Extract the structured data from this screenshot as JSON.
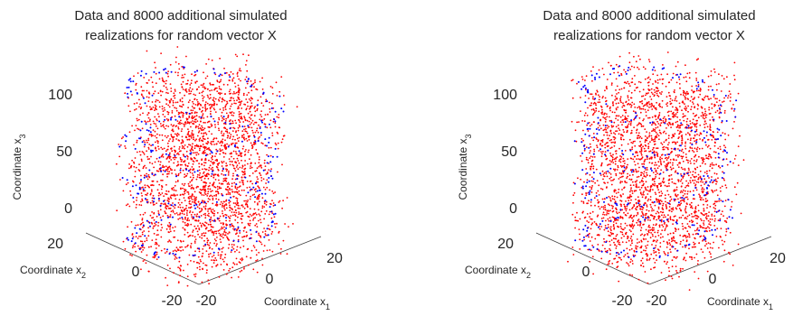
{
  "chart_data": [
    {
      "type": "scatter3d",
      "title": [
        "Data and 8000 additional simulated",
        "realizations for random vector X"
      ],
      "xlabel": "Coordinate x",
      "xlabel_sub": "1",
      "ylabel": "Coordinate x",
      "ylabel_sub": "2",
      "zlabel": "Coordinate x",
      "zlabel_sub": "3",
      "xlim": [
        -20,
        20
      ],
      "ylim": [
        -20,
        20
      ],
      "zlim": [
        0,
        100
      ],
      "xticks": [
        "-20",
        "0",
        "20"
      ],
      "yticks": [
        "-20",
        "0",
        "20"
      ],
      "zticks": [
        "0",
        "50",
        "100"
      ],
      "grid": false,
      "series": [
        {
          "color": "#ff0000",
          "marker": "dot",
          "points": 8000,
          "distribution": "cylinder radius ~20, x3 0-100"
        },
        {
          "color": "#0000ff",
          "marker": "dot",
          "points": 250,
          "distribution": "helix radius ~18, x3 0-100"
        }
      ]
    },
    {
      "type": "scatter3d",
      "title": [
        "Data and 8000 additional simulated",
        "realizations for random vector X"
      ],
      "xlabel": "Coordinate x",
      "xlabel_sub": "1",
      "ylabel": "Coordinate x",
      "ylabel_sub": "2",
      "zlabel": "Coordinate x",
      "zlabel_sub": "3",
      "xlim": [
        -20,
        20
      ],
      "ylim": [
        -20,
        20
      ],
      "zlim": [
        0,
        100
      ],
      "xticks": [
        "-20",
        "0",
        "20"
      ],
      "yticks": [
        "-20",
        "0",
        "20"
      ],
      "zticks": [
        "0",
        "50",
        "100"
      ],
      "grid": false,
      "series": [
        {
          "color": "#ff0000",
          "marker": "dot",
          "points": 8000,
          "distribution": "cylinder radius ~20, x3 0-100"
        },
        {
          "color": "#0000ff",
          "marker": "dot",
          "points": 250,
          "distribution": "helix radius ~18, x3 0-100"
        }
      ]
    }
  ]
}
